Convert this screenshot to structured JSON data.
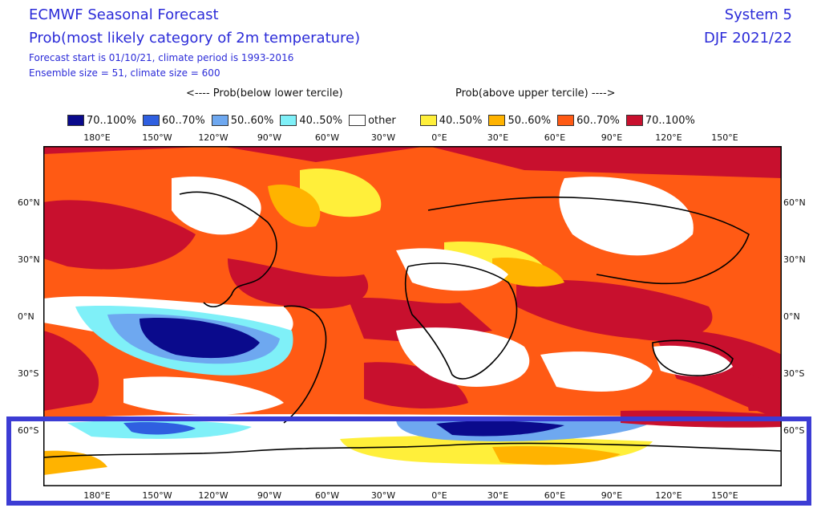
{
  "header": {
    "title": "ECMWF Seasonal Forecast",
    "subtitle": "Prob(most likely category of 2m temperature)",
    "forecast_info": "Forecast start is 01/10/21, climate period is 1993-2016",
    "ensemble_info": "Ensemble size = 51, climate size = 600",
    "system": "System 5",
    "season": "DJF 2021/22"
  },
  "terciles": {
    "below": "<---- Prob(below lower tercile)",
    "above": "Prob(above upper tercile) ---->"
  },
  "legend": [
    {
      "label": "70..100%",
      "color": "#0a0a8c"
    },
    {
      "label": "60..70%",
      "color": "#2f5fe0"
    },
    {
      "label": "50..60%",
      "color": "#6ea8f0"
    },
    {
      "label": "40..50%",
      "color": "#7ff0f8"
    },
    {
      "label": "other",
      "color": "#ffffff"
    },
    {
      "label": "40..50%",
      "color": "#ffef3a"
    },
    {
      "label": "50..60%",
      "color": "#ffb300"
    },
    {
      "label": "60..70%",
      "color": "#ff5a14"
    },
    {
      "label": "70..100%",
      "color": "#c8102e"
    }
  ],
  "lon_labels": [
    "180°E",
    "150°W",
    "120°W",
    "90°W",
    "60°W",
    "30°W",
    "0°E",
    "30°E",
    "60°E",
    "90°E",
    "120°E",
    "150°E"
  ],
  "lat_labels": [
    "60°N",
    "30°N",
    "0°N",
    "30°S",
    "60°S"
  ],
  "colors": {
    "text": "#2b2bd8",
    "highlight": "#3c3cd4",
    "coast": "#000000"
  }
}
